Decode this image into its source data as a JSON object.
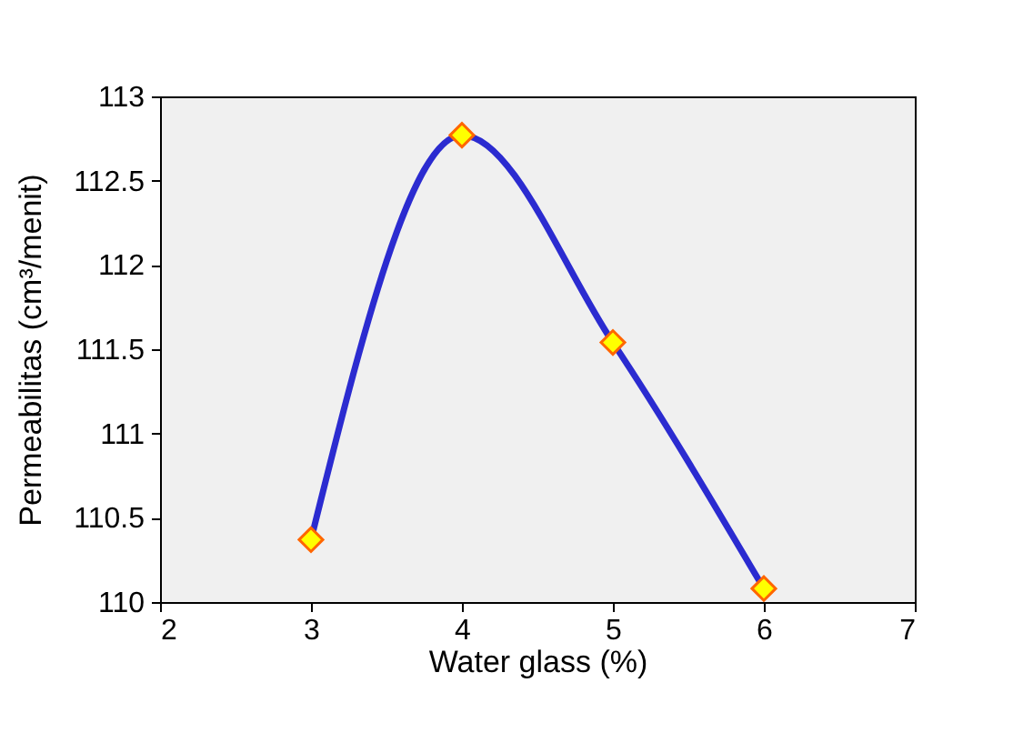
{
  "chart_data": {
    "type": "line",
    "xlabel": "Water glass (%)",
    "ylabel": "Permeabilitas (cm³/menit)",
    "x": [
      3,
      4,
      5,
      6
    ],
    "series": [
      {
        "color": "#2b2bd0",
        "colors": [
          "#ffff00",
          "#ffff00",
          "#ffff00",
          "#ffff00"
        ],
        "values": [
          110.37,
          112.77,
          111.54,
          110.08
        ]
      }
    ],
    "xlim": [
      2,
      7
    ],
    "xticks": [
      2,
      3,
      4,
      5,
      6,
      7
    ],
    "ylim": [
      110,
      113
    ],
    "yticks": [
      110,
      110.5,
      111,
      111.5,
      112,
      112.5,
      113
    ],
    "grid": false,
    "marker": "diamond",
    "line_style": "solid"
  }
}
